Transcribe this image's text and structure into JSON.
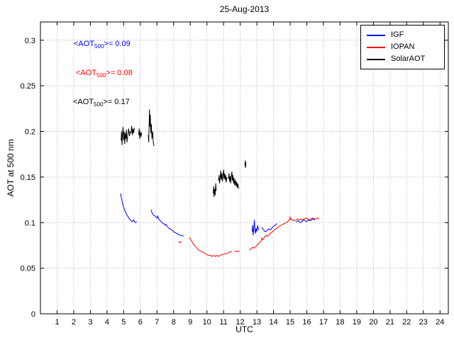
{
  "figure": {
    "title": "25-Aug-2013",
    "xlabel": "UTC",
    "ylabel": "AOT at 500 nm"
  },
  "legend": {
    "entries": [
      {
        "label": "IGF",
        "color": "#0000FF"
      },
      {
        "label": "IOPAN",
        "color": "#FF0000"
      },
      {
        "label": "SolarAOT",
        "color": "#000000"
      }
    ]
  },
  "annotations": [
    {
      "pre": "<AOT",
      "sub": "500",
      "post": ">= 0.09",
      "color": "#0000FF"
    },
    {
      "pre": "<AOT",
      "sub": "500",
      "post": ">= 0.08",
      "color": "#FF0000"
    },
    {
      "pre": "<AOT",
      "sub": "500",
      "post": ">= 0.17",
      "color": "#000000"
    }
  ],
  "chart_data": {
    "type": "line",
    "title": "25-Aug-2013",
    "xlabel": "UTC",
    "ylabel": "AOT at 500 nm",
    "xlim": [
      0,
      24.5
    ],
    "ylim": [
      0,
      0.32
    ],
    "xticks": [
      1,
      2,
      3,
      4,
      5,
      6,
      7,
      8,
      9,
      10,
      11,
      12,
      13,
      14,
      15,
      16,
      17,
      18,
      19,
      20,
      21,
      22,
      23,
      24
    ],
    "yticks": [
      0,
      0.05,
      0.1,
      0.15,
      0.2,
      0.25,
      0.3
    ],
    "grid": true,
    "grid_color": "#b3b3b3",
    "legend_position": "top-right",
    "series": [
      {
        "name": "IGF",
        "color": "#0000FF",
        "mean_aot_500": 0.09,
        "segments": [
          [
            [
              4.82,
              0.132
            ],
            [
              4.86,
              0.127
            ],
            [
              4.9,
              0.124
            ],
            [
              4.95,
              0.12
            ],
            [
              5.0,
              0.117
            ],
            [
              5.05,
              0.114
            ],
            [
              5.1,
              0.112
            ],
            [
              5.15,
              0.11
            ],
            [
              5.2,
              0.108
            ],
            [
              5.25,
              0.107
            ],
            [
              5.3,
              0.105
            ],
            [
              5.35,
              0.104
            ],
            [
              5.4,
              0.103
            ],
            [
              5.45,
              0.102
            ],
            [
              5.5,
              0.101
            ],
            [
              5.55,
              0.102
            ],
            [
              5.6,
              0.103
            ],
            [
              5.65,
              0.101
            ],
            [
              5.7,
              0.1
            ],
            [
              5.78,
              0.101
            ]
          ],
          [
            [
              6.65,
              0.114
            ],
            [
              6.7,
              0.111
            ],
            [
              6.75,
              0.109
            ],
            [
              6.8,
              0.108
            ],
            [
              6.9,
              0.107
            ],
            [
              7.0,
              0.105
            ],
            [
              7.05,
              0.107
            ],
            [
              7.1,
              0.104
            ],
            [
              7.2,
              0.102
            ],
            [
              7.3,
              0.1
            ],
            [
              7.4,
              0.099
            ],
            [
              7.5,
              0.097
            ],
            [
              7.55,
              0.098
            ],
            [
              7.6,
              0.096
            ],
            [
              7.7,
              0.094
            ],
            [
              7.8,
              0.093
            ],
            [
              7.9,
              0.092
            ],
            [
              8.0,
              0.09
            ],
            [
              8.1,
              0.089
            ],
            [
              8.2,
              0.088
            ],
            [
              8.3,
              0.087
            ],
            [
              8.4,
              0.086
            ],
            [
              8.5,
              0.086
            ],
            [
              8.6,
              0.085
            ]
          ],
          [
            [
              12.72,
              0.09
            ],
            [
              12.75,
              0.097
            ],
            [
              12.78,
              0.086
            ],
            [
              12.82,
              0.095
            ],
            [
              12.85,
              0.103
            ],
            [
              12.88,
              0.092
            ],
            [
              12.92,
              0.088
            ],
            [
              12.95,
              0.094
            ],
            [
              13.0,
              0.09
            ],
            [
              13.05,
              0.097
            ],
            [
              13.1,
              0.092
            ]
          ],
          [
            [
              13.3,
              0.095
            ],
            [
              13.4,
              0.092
            ],
            [
              13.5,
              0.09
            ],
            [
              13.6,
              0.091
            ],
            [
              13.7,
              0.093
            ],
            [
              13.8,
              0.092
            ],
            [
              13.9,
              0.094
            ],
            [
              14.0,
              0.096
            ],
            [
              14.1,
              0.097
            ],
            [
              14.2,
              0.099
            ]
          ],
          [
            [
              15.35,
              0.101
            ],
            [
              15.5,
              0.102
            ],
            [
              15.6,
              0.1
            ],
            [
              15.7,
              0.101
            ],
            [
              15.8,
              0.103
            ],
            [
              15.9,
              0.102
            ],
            [
              16.0,
              0.101
            ],
            [
              16.1,
              0.103
            ],
            [
              16.2,
              0.102
            ],
            [
              16.35,
              0.104
            ],
            [
              16.5,
              0.103
            ]
          ]
        ]
      },
      {
        "name": "IOPAN",
        "color": "#FF0000",
        "mean_aot_500": 0.08,
        "segments": [
          [
            [
              8.3,
              0.079
            ],
            [
              8.36,
              0.078
            ],
            [
              8.42,
              0.079
            ],
            [
              8.48,
              0.078
            ]
          ],
          [
            [
              8.95,
              0.084
            ],
            [
              9.0,
              0.082
            ],
            [
              9.1,
              0.079
            ],
            [
              9.2,
              0.076
            ],
            [
              9.3,
              0.074
            ],
            [
              9.4,
              0.072
            ],
            [
              9.5,
              0.07
            ],
            [
              9.6,
              0.069
            ],
            [
              9.7,
              0.068
            ],
            [
              9.8,
              0.067
            ],
            [
              9.9,
              0.066
            ],
            [
              10.0,
              0.065
            ],
            [
              10.1,
              0.064
            ],
            [
              10.2,
              0.064
            ],
            [
              10.3,
              0.063
            ],
            [
              10.4,
              0.064
            ],
            [
              10.5,
              0.063
            ],
            [
              10.6,
              0.064
            ],
            [
              10.7,
              0.063
            ],
            [
              10.8,
              0.064
            ],
            [
              10.9,
              0.065
            ],
            [
              11.0,
              0.065
            ],
            [
              11.1,
              0.066
            ],
            [
              11.2,
              0.066
            ],
            [
              11.3,
              0.067
            ],
            [
              11.4,
              0.068
            ],
            [
              11.5,
              0.068
            ]
          ],
          [
            [
              11.65,
              0.068
            ],
            [
              11.75,
              0.069
            ],
            [
              11.85,
              0.068
            ],
            [
              11.95,
              0.069
            ]
          ],
          [
            [
              12.55,
              0.07
            ],
            [
              12.65,
              0.071
            ],
            [
              12.75,
              0.073
            ],
            [
              12.85,
              0.072
            ],
            [
              12.95,
              0.074
            ],
            [
              13.05,
              0.076
            ],
            [
              13.15,
              0.078
            ],
            [
              13.25,
              0.08
            ],
            [
              13.3,
              0.083
            ],
            [
              13.35,
              0.081
            ],
            [
              13.45,
              0.084
            ],
            [
              13.55,
              0.086
            ],
            [
              13.65,
              0.085
            ],
            [
              13.75,
              0.087
            ],
            [
              13.85,
              0.089
            ],
            [
              13.95,
              0.09
            ],
            [
              14.05,
              0.092
            ],
            [
              14.15,
              0.093
            ],
            [
              14.25,
              0.095
            ],
            [
              14.35,
              0.096
            ],
            [
              14.45,
              0.097
            ],
            [
              14.55,
              0.098
            ],
            [
              14.65,
              0.099
            ],
            [
              14.75,
              0.1
            ],
            [
              14.85,
              0.101
            ],
            [
              14.95,
              0.103
            ],
            [
              15.0,
              0.106
            ],
            [
              15.05,
              0.103
            ],
            [
              15.15,
              0.103
            ],
            [
              15.25,
              0.102
            ],
            [
              15.35,
              0.103
            ],
            [
              15.45,
              0.104
            ],
            [
              15.55,
              0.103
            ],
            [
              15.65,
              0.104
            ],
            [
              15.75,
              0.103
            ],
            [
              15.85,
              0.104
            ],
            [
              15.95,
              0.105
            ],
            [
              16.05,
              0.104
            ],
            [
              16.15,
              0.103
            ],
            [
              16.25,
              0.104
            ],
            [
              16.35,
              0.105
            ],
            [
              16.45,
              0.104
            ],
            [
              16.55,
              0.104
            ],
            [
              16.65,
              0.105
            ],
            [
              16.75,
              0.104
            ]
          ]
        ]
      },
      {
        "name": "SolarAOT",
        "color": "#000000",
        "mean_aot_500": 0.17,
        "segments": [
          [
            [
              4.85,
              0.19
            ],
            [
              4.87,
              0.2
            ],
            [
              4.9,
              0.185
            ],
            [
              4.93,
              0.197
            ],
            [
              4.96,
              0.205
            ],
            [
              5.0,
              0.19
            ],
            [
              5.03,
              0.2
            ],
            [
              5.06,
              0.186
            ],
            [
              5.1,
              0.198
            ],
            [
              5.13,
              0.192
            ],
            [
              5.16,
              0.202
            ],
            [
              5.2,
              0.188
            ],
            [
              5.25,
              0.196
            ],
            [
              5.3,
              0.203
            ],
            [
              5.35,
              0.195
            ],
            [
              5.4,
              0.2
            ]
          ],
          [
            [
              5.45,
              0.198
            ],
            [
              5.48,
              0.206
            ],
            [
              5.52,
              0.196
            ],
            [
              5.56,
              0.203
            ],
            [
              5.6,
              0.198
            ],
            [
              5.64,
              0.204
            ]
          ],
          [
            [
              5.9,
              0.196
            ],
            [
              5.93,
              0.203
            ],
            [
              5.96,
              0.192
            ],
            [
              6.0,
              0.2
            ],
            [
              6.04,
              0.194
            ],
            [
              6.08,
              0.199
            ]
          ],
          [
            [
              6.48,
              0.196
            ],
            [
              6.5,
              0.188
            ],
            [
              6.53,
              0.21
            ],
            [
              6.55,
              0.224
            ],
            [
              6.58,
              0.205
            ],
            [
              6.6,
              0.218
            ],
            [
              6.63,
              0.198
            ],
            [
              6.66,
              0.208
            ],
            [
              6.7,
              0.192
            ],
            [
              6.74,
              0.2
            ],
            [
              6.78,
              0.188
            ],
            [
              6.82,
              0.184
            ]
          ],
          [
            [
              10.38,
              0.132
            ],
            [
              10.4,
              0.14
            ],
            [
              10.43,
              0.128
            ],
            [
              10.46,
              0.137
            ],
            [
              10.5,
              0.13
            ],
            [
              10.53,
              0.143
            ],
            [
              10.56,
              0.135
            ]
          ],
          [
            [
              10.7,
              0.146
            ],
            [
              10.73,
              0.152
            ],
            [
              10.76,
              0.143
            ],
            [
              10.8,
              0.15
            ],
            [
              10.83,
              0.157
            ],
            [
              10.86,
              0.147
            ],
            [
              10.9,
              0.154
            ],
            [
              10.93,
              0.145
            ],
            [
              10.96,
              0.151
            ],
            [
              11.0,
              0.158
            ],
            [
              11.03,
              0.148
            ],
            [
              11.06,
              0.154
            ],
            [
              11.1,
              0.147
            ],
            [
              11.13,
              0.152
            ],
            [
              11.16,
              0.144
            ],
            [
              11.2,
              0.15
            ]
          ],
          [
            [
              11.3,
              0.148
            ],
            [
              11.33,
              0.154
            ],
            [
              11.36,
              0.145
            ],
            [
              11.4,
              0.151
            ],
            [
              11.43,
              0.143
            ],
            [
              11.46,
              0.15
            ],
            [
              11.5,
              0.156
            ],
            [
              11.53,
              0.146
            ],
            [
              11.56,
              0.152
            ],
            [
              11.6,
              0.143
            ],
            [
              11.63,
              0.149
            ],
            [
              11.66,
              0.141
            ],
            [
              11.7,
              0.147
            ],
            [
              11.74,
              0.14
            ],
            [
              11.78,
              0.145
            ],
            [
              11.82,
              0.138
            ],
            [
              11.86,
              0.143
            ],
            [
              11.9,
              0.137
            ]
          ],
          [
            [
              12.28,
              0.162
            ],
            [
              12.3,
              0.168
            ],
            [
              12.32,
              0.16
            ],
            [
              12.35,
              0.166
            ]
          ]
        ]
      }
    ]
  }
}
